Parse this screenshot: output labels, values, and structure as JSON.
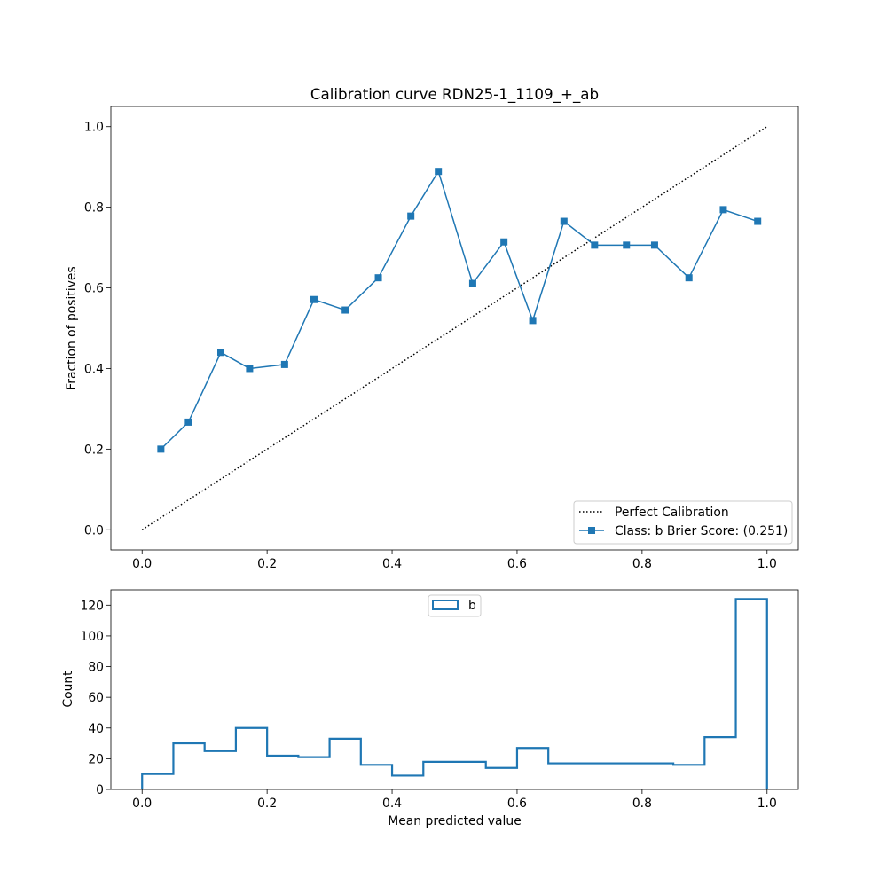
{
  "chart_data": [
    {
      "type": "line",
      "title": "Calibration curve RDN25-1_1109_+_ab",
      "xlabel": "",
      "ylabel": "Fraction of positives",
      "xlim": [
        -0.05,
        1.05
      ],
      "ylim": [
        -0.05,
        1.05
      ],
      "xticks": [
        0.0,
        0.2,
        0.4,
        0.6,
        0.8,
        1.0
      ],
      "yticks": [
        0.0,
        0.2,
        0.4,
        0.6,
        0.8,
        1.0
      ],
      "grid": false,
      "legend_position": "lower-right",
      "series": [
        {
          "name": "Perfect Calibration",
          "style": "dotted",
          "color": "#000000",
          "x": [
            0.0,
            1.0
          ],
          "y": [
            0.0,
            1.0
          ]
        },
        {
          "name": "Class: b Brier Score: (0.251)",
          "style": "solid",
          "marker": "square",
          "color": "#1f77b4",
          "x": [
            0.03,
            0.074,
            0.126,
            0.172,
            0.228,
            0.275,
            0.325,
            0.378,
            0.43,
            0.474,
            0.529,
            0.579,
            0.625,
            0.675,
            0.724,
            0.775,
            0.82,
            0.875,
            0.93,
            0.985
          ],
          "y": [
            0.2,
            0.267,
            0.44,
            0.4,
            0.41,
            0.571,
            0.545,
            0.625,
            0.778,
            0.889,
            0.611,
            0.714,
            0.519,
            0.765,
            0.706,
            0.706,
            0.706,
            0.625,
            0.794,
            0.765
          ]
        }
      ]
    },
    {
      "type": "histogram",
      "title": "",
      "xlabel": "Mean predicted value",
      "ylabel": "Count",
      "xlim": [
        -0.05,
        1.05
      ],
      "ylim": [
        0,
        130
      ],
      "xticks": [
        0.0,
        0.2,
        0.4,
        0.6,
        0.8,
        1.0
      ],
      "yticks": [
        0,
        20,
        40,
        60,
        80,
        100,
        120
      ],
      "grid": false,
      "legend_position": "upper-center",
      "histtype": "step",
      "series": [
        {
          "name": "b",
          "color": "#1f77b4",
          "bin_edges": [
            0.0,
            0.05,
            0.1,
            0.15,
            0.2,
            0.25,
            0.3,
            0.35,
            0.4,
            0.45,
            0.5,
            0.55,
            0.6,
            0.65,
            0.7,
            0.75,
            0.8,
            0.85,
            0.9,
            0.95,
            1.0
          ],
          "counts": [
            10,
            30,
            25,
            40,
            22,
            21,
            33,
            16,
            9,
            18,
            18,
            14,
            27,
            17,
            17,
            17,
            17,
            16,
            34,
            124
          ]
        }
      ]
    }
  ]
}
